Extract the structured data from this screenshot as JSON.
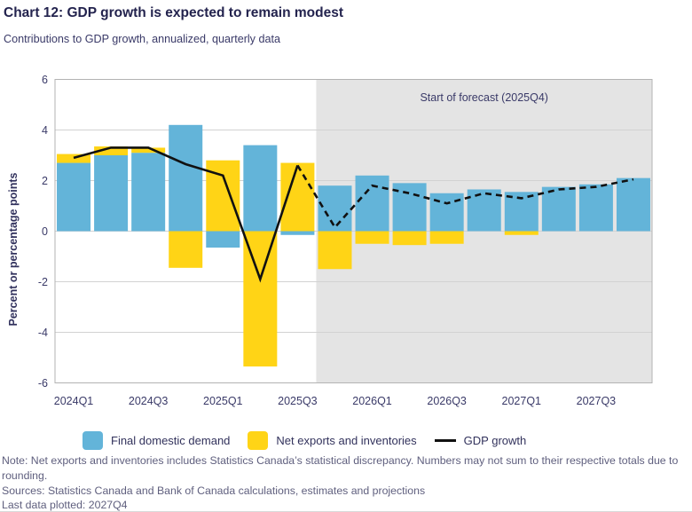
{
  "header": {
    "title": "Chart 12: GDP growth is expected to remain modest",
    "subtitle": "Contributions to GDP growth, annualized, quarterly data"
  },
  "chart_data": {
    "type": "bar",
    "subtype": "stacked-bar-with-line",
    "title": "Chart 12: GDP growth is expected to remain modest",
    "subtitle": "Contributions to GDP growth, annualized, quarterly data",
    "categories": [
      "2024Q1",
      "2024Q2",
      "2024Q3",
      "2024Q4",
      "2025Q1",
      "2025Q2",
      "2025Q3",
      "2025Q4",
      "2026Q1",
      "2026Q2",
      "2026Q3",
      "2026Q4",
      "2027Q1",
      "2027Q2",
      "2027Q3",
      "2027Q4"
    ],
    "series": [
      {
        "name": "Final domestic demand",
        "type": "bar",
        "color": "#63b4d9",
        "values": [
          2.7,
          3.0,
          3.1,
          4.2,
          -0.65,
          3.4,
          -0.15,
          1.8,
          2.2,
          1.9,
          1.5,
          1.65,
          1.55,
          1.75,
          1.85,
          2.1
        ]
      },
      {
        "name": "Net exports and inventories",
        "type": "bar",
        "color": "#ffd416",
        "values": [
          0.35,
          0.35,
          0.2,
          -1.45,
          2.8,
          -5.35,
          2.7,
          -1.5,
          -0.5,
          -0.55,
          -0.5,
          0,
          -0.15,
          0,
          0,
          0
        ]
      },
      {
        "name": "GDP growth",
        "type": "line",
        "color": "#111111",
        "dashed_from_index": 6,
        "values": [
          2.9,
          3.3,
          3.3,
          2.65,
          2.2,
          -1.9,
          2.6,
          0.15,
          1.8,
          1.5,
          1.1,
          1.5,
          1.3,
          1.65,
          1.75,
          2.05
        ]
      }
    ],
    "xlabel": "",
    "ylabel": "Percent or percentage points",
    "ylim": [
      -6,
      6
    ],
    "ytick_step": 2,
    "ytick_labels": [
      "-6",
      "-4",
      "-2",
      "0",
      "2",
      "4",
      "6"
    ],
    "xtick_every": 2,
    "xtick_labels_shown": [
      "2024Q1",
      "2024Q3",
      "2025Q1",
      "2025Q3",
      "2026Q1",
      "2026Q3",
      "2027Q1",
      "2027Q3"
    ],
    "grid": true,
    "gridline_color": "#d2d2d2",
    "axis_box_color": "#b3b3b3",
    "legend_position": "bottom",
    "forecast": {
      "label": "Start of forecast (2025Q4)",
      "start_index": 7,
      "band_color": "#e4e4e4"
    }
  },
  "footer": {
    "note": "Note: Net exports and inventories includes Statistics Canada’s statistical discrepancy. Numbers may not sum to their respective totals due to rounding.",
    "sources": "Sources: Statistics Canada and Bank of Canada calculations, estimates and projections",
    "last_data": "Last data plotted: 2027Q4"
  }
}
